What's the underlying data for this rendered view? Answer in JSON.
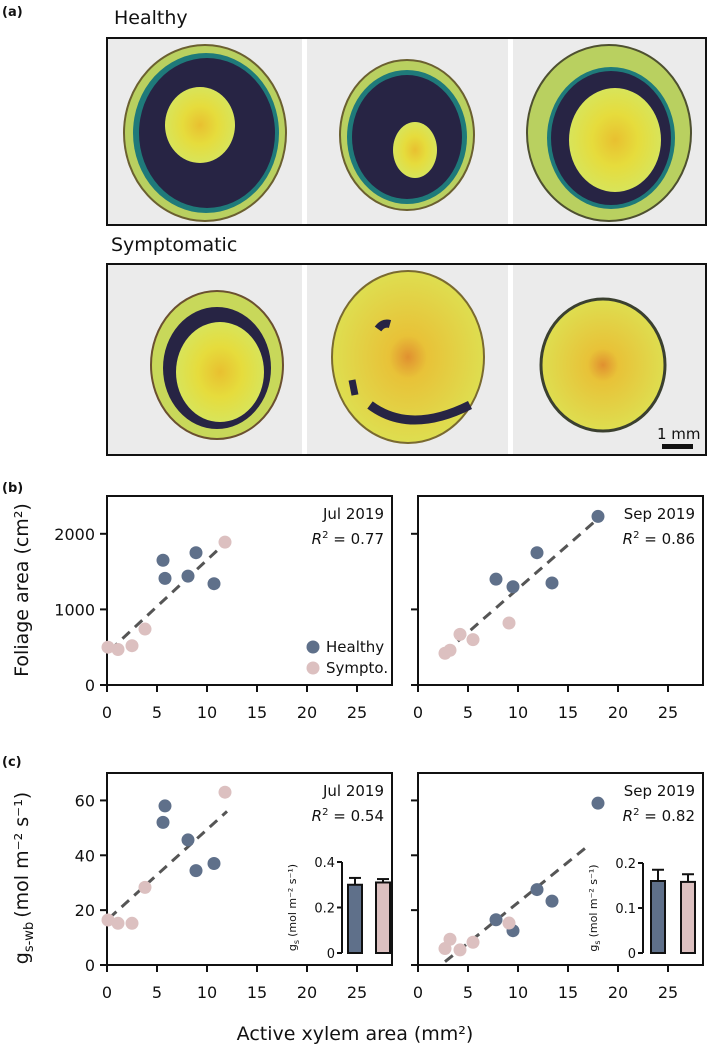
{
  "figure": {
    "panel_labels": {
      "a": "(a)",
      "b": "(b)",
      "c": "(c)"
    },
    "photos": {
      "row_labels": [
        "Healthy",
        "Symptomatic"
      ],
      "scale_bar_label": "1 mm"
    },
    "shared_xlabel": "Active xylem area (mm²)",
    "colors": {
      "healthy": "#5f708a",
      "sympto": "#dcc0c0",
      "fit_line": "#555555"
    }
  },
  "chart_data": [
    {
      "id": "b-jul",
      "type": "scatter",
      "panel": "b",
      "annotation": {
        "title": "Jul 2019",
        "r2_label": "R",
        "r2_value": " = 0.77"
      },
      "ylabel": "Foliage area (cm²)",
      "xlim": [
        0,
        28.5
      ],
      "ylim": [
        0,
        2500
      ],
      "xticks": [
        0,
        5,
        10,
        15,
        20,
        25
      ],
      "yticks": [
        0,
        1000,
        2000
      ],
      "legend": {
        "position": "bottom-right",
        "entries": [
          "Healthy",
          "Sympto."
        ]
      },
      "series": [
        {
          "name": "Healthy",
          "x": [
            5.6,
            5.8,
            8.1,
            8.9,
            10.7
          ],
          "y": [
            1650,
            1410,
            1440,
            1750,
            1340
          ]
        },
        {
          "name": "Sympto.",
          "x": [
            0.1,
            1.1,
            2.5,
            3.8,
            11.8
          ],
          "y": [
            500,
            470,
            520,
            740,
            1890
          ]
        }
      ],
      "fit": {
        "x": [
          0.3,
          12
        ],
        "y": [
          460,
          1900
        ]
      }
    },
    {
      "id": "b-sep",
      "type": "scatter",
      "panel": "b",
      "annotation": {
        "title": "Sep 2019",
        "r2_label": "R",
        "r2_value": " = 0.86"
      },
      "xlim": [
        0,
        28.5
      ],
      "ylim": [
        0,
        2500
      ],
      "xticks": [
        0,
        5,
        10,
        15,
        20,
        25
      ],
      "yticks": [
        0,
        1000,
        2000
      ],
      "series": [
        {
          "name": "Healthy",
          "x": [
            7.8,
            9.5,
            11.9,
            13.4,
            18.0
          ],
          "y": [
            1400,
            1300,
            1750,
            1350,
            2230
          ]
        },
        {
          "name": "Sympto.",
          "x": [
            2.7,
            3.2,
            4.2,
            5.5,
            9.1
          ],
          "y": [
            420,
            460,
            670,
            600,
            820
          ]
        }
      ],
      "fit": {
        "x": [
          2.7,
          18
        ],
        "y": [
          430,
          2200
        ]
      }
    },
    {
      "id": "c-jul",
      "type": "scatter",
      "panel": "c",
      "annotation": {
        "title": "Jul 2019",
        "r2_label": "R",
        "r2_value": " = 0.54"
      },
      "ylabel_main": "g",
      "ylabel_sub": "s-wb",
      "ylabel_units": "(mol m⁻² s⁻¹)",
      "xlim": [
        0,
        28.5
      ],
      "ylim": [
        0,
        70
      ],
      "xticks": [
        0,
        5,
        10,
        15,
        20,
        25
      ],
      "yticks": [
        0,
        20,
        40,
        60
      ],
      "series": [
        {
          "name": "Healthy",
          "x": [
            5.8,
            5.6,
            8.1,
            8.9,
            10.7
          ],
          "y": [
            58,
            52,
            45.6,
            34.4,
            37
          ]
        },
        {
          "name": "Sympto.",
          "x": [
            0.1,
            1.1,
            2.5,
            3.8,
            11.8
          ],
          "y": [
            16.4,
            15.2,
            15.2,
            28.3,
            63
          ]
        }
      ],
      "fit": {
        "x": [
          0.2,
          12
        ],
        "y": [
          17,
          56
        ]
      },
      "inset": {
        "type": "bar",
        "ylabel": "g",
        "ylabel_sub": "s",
        "ylabel_units": "(mol m⁻² s⁻¹)",
        "ylim": [
          0,
          0.4
        ],
        "yticks": [
          0,
          0.2,
          0.4
        ],
        "ytick_labels": [
          "0",
          "0.2",
          "0.4"
        ],
        "categories": [
          "Healthy",
          "Sympto."
        ],
        "values": [
          0.3,
          0.31
        ],
        "errors": [
          0.03,
          0.015
        ]
      }
    },
    {
      "id": "c-sep",
      "type": "scatter",
      "panel": "c",
      "annotation": {
        "title": "Sep 2019",
        "r2_label": "R",
        "r2_value": " = 0.82"
      },
      "xlim": [
        0,
        28.5
      ],
      "ylim": [
        0,
        70
      ],
      "xticks": [
        0,
        5,
        10,
        15,
        20,
        25
      ],
      "yticks": [
        0,
        20,
        40,
        60
      ],
      "series": [
        {
          "name": "Healthy",
          "x": [
            18.0,
            11.9,
            13.4,
            7.8,
            9.5
          ],
          "y": [
            59,
            27.5,
            23.3,
            16.5,
            12.5
          ]
        },
        {
          "name": "Sympto.",
          "x": [
            2.7,
            3.2,
            4.2,
            5.5,
            9.1
          ],
          "y": [
            6,
            9.4,
            5.5,
            8.3,
            15.3
          ]
        }
      ],
      "fit": {
        "x": [
          2.7,
          17.2
        ],
        "y": [
          1.2,
          44
        ]
      },
      "inset": {
        "type": "bar",
        "ylabel": "g",
        "ylabel_sub": "s",
        "ylabel_units": "(mol m⁻² s⁻¹)",
        "ylim": [
          0,
          0.2
        ],
        "yticks": [
          0,
          0.1,
          0.2
        ],
        "ytick_labels": [
          "0",
          "0.1",
          "0.2"
        ],
        "categories": [
          "Healthy",
          "Sympto."
        ],
        "values": [
          0.16,
          0.158
        ],
        "errors": [
          0.025,
          0.017
        ]
      }
    }
  ]
}
